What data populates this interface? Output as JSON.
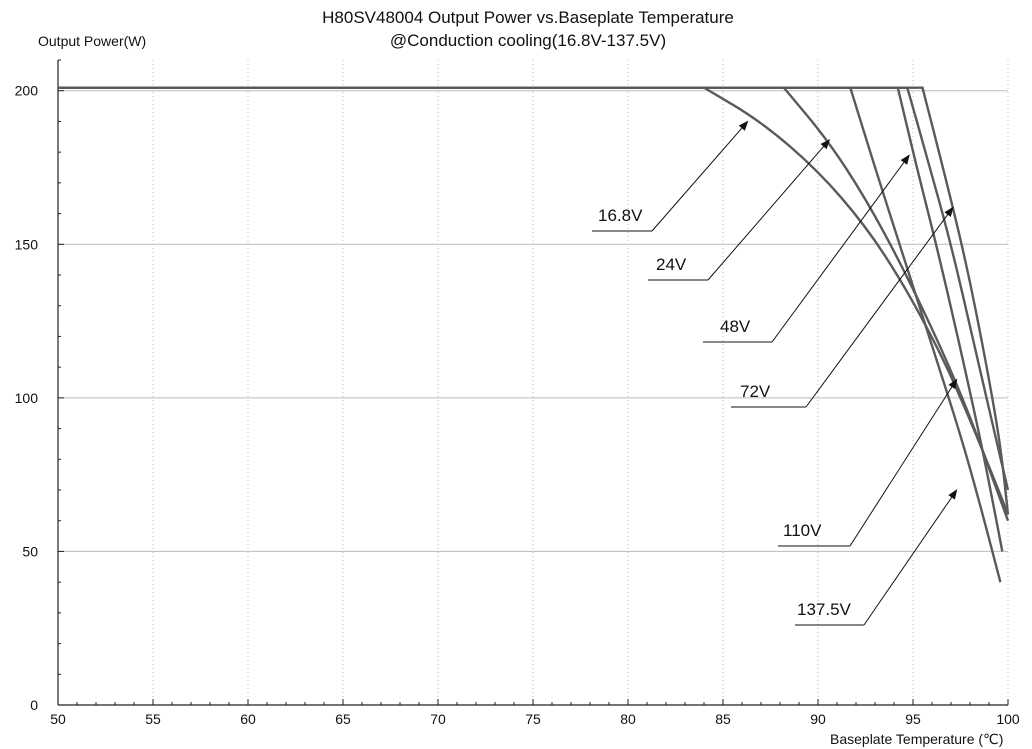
{
  "chart_data": {
    "type": "line",
    "title": "H80SV48004   Output Power vs.Baseplate  Temperature",
    "subtitle": "@Conduction cooling(16.8V-137.5V)",
    "xlabel": "Baseplate Temperature (℃)",
    "ylabel": "Output Power(W)",
    "xlim": [
      50,
      100
    ],
    "ylim": [
      0,
      210
    ],
    "x_ticks": [
      "50",
      "55",
      "60",
      "65",
      "70",
      "75",
      "80",
      "85",
      "90",
      "95",
      "100"
    ],
    "y_ticks": [
      "0",
      "50",
      "100",
      "150",
      "200"
    ],
    "grid": true,
    "series": [
      {
        "name": "16.8V",
        "x": [
          50,
          84.0,
          87.0,
          90.0,
          92.5,
          94.5,
          96.5,
          98.0,
          99.5,
          100
        ],
        "y": [
          201,
          201,
          190,
          174,
          156,
          137,
          114,
          93,
          70,
          62
        ]
      },
      {
        "name": "24V",
        "x": [
          50,
          88.2,
          90.5,
          92.5,
          94.5,
          96.5,
          98.0,
          99.3,
          100
        ],
        "y": [
          201,
          201,
          184,
          165,
          142,
          116,
          94,
          72,
          60
        ]
      },
      {
        "name": "48V",
        "x": [
          50,
          91.7,
          93.0,
          94.5,
          96.0,
          97.5,
          98.5,
          99.6
        ],
        "y": [
          201,
          201,
          175,
          146,
          117,
          88,
          66,
          40
        ]
      },
      {
        "name": "72V",
        "x": [
          50,
          94.2,
          95.2,
          96.3,
          97.5,
          98.6,
          99.3,
          99.7
        ],
        "y": [
          201,
          201,
          175,
          148,
          116,
          85,
          63,
          50
        ]
      },
      {
        "name": "110V",
        "x": [
          50,
          94.7,
          95.8,
          97.0,
          98.2,
          99.2,
          100
        ],
        "y": [
          201,
          201,
          177,
          150,
          118,
          91,
          70
        ]
      },
      {
        "name": "137.5V",
        "x": [
          50,
          95.5,
          96.7,
          97.8,
          98.8,
          99.6,
          100
        ],
        "y": [
          201,
          201,
          172,
          144,
          113,
          85,
          62
        ]
      }
    ],
    "annotations": [
      {
        "text": "16.8V",
        "arrow_to": [
          86.3,
          190
        ]
      },
      {
        "text": "24V",
        "arrow_to": [
          90.6,
          184
        ]
      },
      {
        "text": "48V",
        "arrow_to": [
          94.8,
          179
        ]
      },
      {
        "text": "72V",
        "arrow_to": [
          97.1,
          162
        ]
      },
      {
        "text": "110V",
        "arrow_to": [
          97.3,
          106
        ]
      },
      {
        "text": "137.5V",
        "arrow_to": [
          97.3,
          70
        ]
      }
    ]
  }
}
